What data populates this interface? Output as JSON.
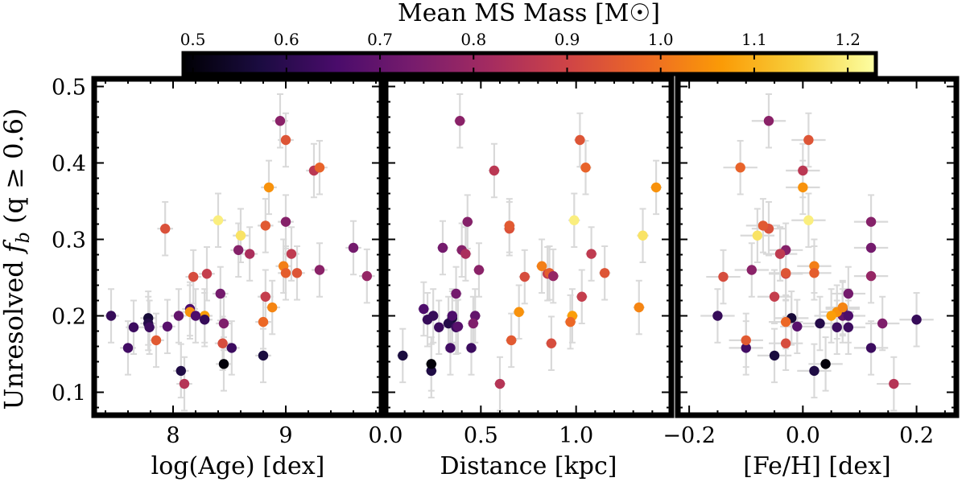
{
  "chart_data": {
    "type": "scatter",
    "shared_ylabel_parts": [
      "Unresolved ",
      "f",
      "b",
      " (q ≥ 0.6)"
    ],
    "ylim": [
      0.07,
      0.51
    ],
    "yticks": [
      0.1,
      0.2,
      0.3,
      0.4,
      0.5
    ],
    "ytick_labels": [
      "0.1",
      "0.2",
      "0.3",
      "0.4",
      "0.5"
    ],
    "colorbar": {
      "label": "Mean MS Mass [M☉]",
      "range": [
        0.49,
        1.23
      ],
      "ticks": [
        0.5,
        0.6,
        0.7,
        0.8,
        0.9,
        1.0,
        1.1,
        1.2
      ],
      "tick_labels": [
        "0.5",
        "0.6",
        "0.7",
        "0.8",
        "0.9",
        "1.0",
        "1.1",
        "1.2"
      ],
      "colormap": "inferno",
      "stops": [
        "#000004",
        "#1b0c41",
        "#4a0c6b",
        "#781c6d",
        "#a52c60",
        "#cf4446",
        "#ed6925",
        "#fb9b06",
        "#f7d13d",
        "#fcffa4"
      ]
    },
    "error_bar_color": "#d9d9d9",
    "clusters": [
      {
        "age": 7.45,
        "dist": 0.25,
        "feh": -0.15,
        "fb": 0.2,
        "mass": 0.62,
        "eage": 0.07,
        "ed": 0.03,
        "ef": 0.03,
        "efb": 0.035
      },
      {
        "age": 7.65,
        "dist": 0.28,
        "feh": 0.08,
        "fb": 0.185,
        "mass": 0.63,
        "eage": 0.07,
        "ed": 0.03,
        "ef": 0.03,
        "efb": 0.035
      },
      {
        "age": 7.6,
        "dist": 0.34,
        "feh": -0.1,
        "fb": 0.158,
        "mass": 0.64,
        "eage": 0.07,
        "ed": 0.03,
        "ef": 0.03,
        "efb": 0.035
      },
      {
        "age": 7.78,
        "dist": 0.35,
        "feh": -0.02,
        "fb": 0.197,
        "mass": 0.56,
        "eage": 0.07,
        "ed": 0.03,
        "ef": 0.03,
        "efb": 0.035
      },
      {
        "age": 7.78,
        "dist": 0.33,
        "feh": 0.03,
        "fb": 0.19,
        "mass": 0.59,
        "eage": 0.07,
        "ed": 0.03,
        "ef": 0.03,
        "efb": 0.035
      },
      {
        "age": 7.79,
        "dist": 0.37,
        "feh": 0.06,
        "fb": 0.185,
        "mass": 0.63,
        "eage": 0.07,
        "ed": 0.03,
        "ef": 0.03,
        "efb": 0.035
      },
      {
        "age": 7.85,
        "dist": 0.66,
        "feh": -0.1,
        "fb": 0.168,
        "mass": 0.95,
        "eage": 0.07,
        "ed": 0.03,
        "ef": 0.03,
        "efb": 0.035
      },
      {
        "age": 7.93,
        "dist": 0.65,
        "feh": -0.06,
        "fb": 0.314,
        "mass": 0.93,
        "eage": 0.07,
        "ed": 0.03,
        "ef": 0.03,
        "efb": 0.035
      },
      {
        "age": 8.05,
        "dist": 0.47,
        "feh": 0.07,
        "fb": 0.2,
        "mass": 0.7,
        "eage": 0.07,
        "ed": 0.03,
        "ef": 0.03,
        "efb": 0.035
      },
      {
        "age": 8.07,
        "dist": 0.24,
        "feh": 0.02,
        "fb": 0.128,
        "mass": 0.58,
        "eage": 0.07,
        "ed": 0.03,
        "ef": 0.03,
        "efb": 0.035
      },
      {
        "age": 8.1,
        "dist": 0.6,
        "feh": 0.16,
        "fb": 0.111,
        "mass": 0.85,
        "eage": 0.07,
        "ed": 0.03,
        "ef": 0.03,
        "efb": 0.035
      },
      {
        "age": 8.15,
        "dist": 0.2,
        "feh": 0.07,
        "fb": 0.209,
        "mass": 0.66,
        "eage": 0.07,
        "ed": 0.03,
        "ef": 0.03,
        "efb": 0.035
      },
      {
        "age": 8.15,
        "dist": 0.7,
        "feh": 0.06,
        "fb": 0.205,
        "mass": 1.05,
        "eage": 0.07,
        "ed": 0.03,
        "ef": 0.03,
        "efb": 0.035
      },
      {
        "age": 8.18,
        "dist": 0.73,
        "feh": -0.14,
        "fb": 0.251,
        "mass": 0.92,
        "eage": 0.07,
        "ed": 0.03,
        "ef": 0.03,
        "efb": 0.035
      },
      {
        "age": 8.28,
        "dist": 0.98,
        "feh": 0.05,
        "fb": 0.2,
        "mass": 1.07,
        "eage": 0.07,
        "ed": 0.03,
        "ef": 0.03,
        "efb": 0.035
      },
      {
        "age": 8.3,
        "dist": 0.85,
        "feh": -0.03,
        "fb": 0.255,
        "mass": 0.88,
        "eage": 0.07,
        "ed": 0.03,
        "ef": 0.03,
        "efb": 0.035
      },
      {
        "age": 8.4,
        "dist": 0.99,
        "feh": 0.01,
        "fb": 0.325,
        "mass": 1.2,
        "eage": 0.07,
        "ed": 0.03,
        "ef": 0.03,
        "efb": 0.035
      },
      {
        "age": 8.42,
        "dist": 0.37,
        "feh": 0.08,
        "fb": 0.229,
        "mass": 0.73,
        "eage": 0.07,
        "ed": 0.03,
        "ef": 0.03,
        "efb": 0.035
      },
      {
        "age": 8.44,
        "dist": 0.87,
        "feh": -0.03,
        "fb": 0.164,
        "mass": 0.92,
        "eage": 0.07,
        "ed": 0.03,
        "ef": 0.03,
        "efb": 0.035
      },
      {
        "age": 8.45,
        "dist": 0.46,
        "feh": 0.14,
        "fb": 0.19,
        "mass": 0.75,
        "eage": 0.07,
        "ed": 0.03,
        "ef": 0.03,
        "efb": 0.035
      },
      {
        "age": 8.45,
        "dist": 0.24,
        "feh": 0.04,
        "fb": 0.137,
        "mass": 0.5,
        "eage": 0.07,
        "ed": 0.03,
        "ef": 0.03,
        "efb": 0.035
      },
      {
        "age": 8.52,
        "dist": 0.45,
        "feh": 0.12,
        "fb": 0.158,
        "mass": 0.63,
        "eage": 0.07,
        "ed": 0.03,
        "ef": 0.03,
        "efb": 0.035
      },
      {
        "age": 8.6,
        "dist": 1.35,
        "feh": -0.08,
        "fb": 0.305,
        "mass": 1.18,
        "eage": 0.07,
        "ed": 0.03,
        "ef": 0.03,
        "efb": 0.035
      },
      {
        "age": 8.58,
        "dist": 0.4,
        "feh": -0.03,
        "fb": 0.286,
        "mass": 0.76,
        "eage": 0.07,
        "ed": 0.03,
        "ef": 0.03,
        "efb": 0.035
      },
      {
        "age": 8.68,
        "dist": 0.42,
        "feh": -0.04,
        "fb": 0.281,
        "mass": 0.83,
        "eage": 0.07,
        "ed": 0.03,
        "ef": 0.03,
        "efb": 0.035
      },
      {
        "age": 8.8,
        "dist": 0.09,
        "feh": -0.05,
        "fb": 0.148,
        "mass": 0.57,
        "eage": 0.07,
        "ed": 0.03,
        "ef": 0.03,
        "efb": 0.035
      },
      {
        "age": 8.8,
        "dist": 0.97,
        "feh": -0.03,
        "fb": 0.192,
        "mass": 0.98,
        "eage": 0.07,
        "ed": 0.03,
        "ef": 0.03,
        "efb": 0.035
      },
      {
        "age": 8.82,
        "dist": 1.03,
        "feh": -0.05,
        "fb": 0.225,
        "mass": 0.88,
        "eage": 0.07,
        "ed": 0.03,
        "ef": 0.03,
        "efb": 0.035
      },
      {
        "age": 8.82,
        "dist": 0.65,
        "feh": -0.07,
        "fb": 0.318,
        "mass": 0.95,
        "eage": 0.07,
        "ed": 0.03,
        "ef": 0.03,
        "efb": 0.035
      },
      {
        "age": 8.85,
        "dist": 1.42,
        "feh": 0.0,
        "fb": 0.368,
        "mass": 1.05,
        "eage": 0.07,
        "ed": 0.03,
        "ef": 0.03,
        "efb": 0.035
      },
      {
        "age": 8.88,
        "dist": 1.33,
        "feh": 0.07,
        "fb": 0.211,
        "mass": 1.03,
        "eage": 0.07,
        "ed": 0.03,
        "ef": 0.03,
        "efb": 0.035
      },
      {
        "age": 8.95,
        "dist": 0.39,
        "feh": -0.06,
        "fb": 0.455,
        "mass": 0.77,
        "eage": 0.07,
        "ed": 0.03,
        "ef": 0.03,
        "efb": 0.035
      },
      {
        "age": 8.98,
        "dist": 0.82,
        "feh": 0.02,
        "fb": 0.265,
        "mass": 1.02,
        "eage": 0.07,
        "ed": 0.03,
        "ef": 0.03,
        "efb": 0.035
      },
      {
        "age": 9.0,
        "dist": 1.02,
        "feh": 0.01,
        "fb": 0.43,
        "mass": 0.94,
        "eage": 0.07,
        "ed": 0.03,
        "ef": 0.03,
        "efb": 0.035
      },
      {
        "age": 9.0,
        "dist": 0.43,
        "feh": 0.12,
        "fb": 0.323,
        "mass": 0.76,
        "eage": 0.07,
        "ed": 0.03,
        "ef": 0.03,
        "efb": 0.035
      },
      {
        "age": 9.0,
        "dist": 0.86,
        "feh": 0.02,
        "fb": 0.256,
        "mass": 0.96,
        "eage": 0.07,
        "ed": 0.03,
        "ef": 0.03,
        "efb": 0.035
      },
      {
        "age": 9.05,
        "dist": 1.08,
        "feh": -0.04,
        "fb": 0.281,
        "mass": 0.87,
        "eage": 0.07,
        "ed": 0.03,
        "ef": 0.03,
        "efb": 0.035
      },
      {
        "age": 9.25,
        "dist": 0.57,
        "feh": 0.0,
        "fb": 0.39,
        "mass": 0.86,
        "eage": 0.07,
        "ed": 0.03,
        "ef": 0.03,
        "efb": 0.035
      },
      {
        "age": 9.3,
        "dist": 1.05,
        "feh": -0.11,
        "fb": 0.394,
        "mass": 0.97,
        "eage": 0.07,
        "ed": 0.03,
        "ef": 0.03,
        "efb": 0.035
      },
      {
        "age": 9.3,
        "dist": 0.49,
        "feh": -0.09,
        "fb": 0.26,
        "mass": 0.77,
        "eage": 0.07,
        "ed": 0.03,
        "ef": 0.03,
        "efb": 0.035
      },
      {
        "age": 9.6,
        "dist": 0.3,
        "feh": 0.12,
        "fb": 0.289,
        "mass": 0.73,
        "eage": 0.07,
        "ed": 0.03,
        "ef": 0.03,
        "efb": 0.035
      },
      {
        "age": 9.72,
        "dist": 0.88,
        "feh": 0.12,
        "fb": 0.252,
        "mass": 0.79,
        "eage": 0.07,
        "ed": 0.03,
        "ef": 0.03,
        "efb": 0.035
      },
      {
        "age": 8.2,
        "dist": 0.35,
        "feh": 0.08,
        "fb": 0.2,
        "mass": 0.66,
        "eage": 0.07,
        "ed": 0.03,
        "ef": 0.03,
        "efb": 0.035
      },
      {
        "age": 8.28,
        "dist": 0.22,
        "feh": 0.2,
        "fb": 0.195,
        "mass": 0.62,
        "eage": 0.07,
        "ed": 0.03,
        "ef": 0.03,
        "efb": 0.035
      },
      {
        "age": 7.95,
        "dist": 0.38,
        "feh": -0.01,
        "fb": 0.186,
        "mass": 0.68,
        "eage": 0.07,
        "ed": 0.03,
        "ef": 0.03,
        "efb": 0.035
      },
      {
        "age": 9.1,
        "dist": 1.15,
        "feh": -0.03,
        "fb": 0.256,
        "mass": 0.94,
        "eage": 0.07,
        "ed": 0.03,
        "ef": 0.03,
        "efb": 0.035
      }
    ],
    "panels": [
      {
        "key": "age",
        "err_key": "eage",
        "xlabel": "log(Age) [dex]",
        "xlim": [
          7.3,
          9.85
        ],
        "xticks": [
          8,
          9
        ],
        "xtick_labels": [
          "8",
          "9"
        ],
        "minor_step": 0.2
      },
      {
        "key": "dist",
        "err_key": "ed",
        "xlabel": "Distance [kpc]",
        "xlim": [
          0.0,
          1.5
        ],
        "xticks": [
          0.0,
          0.5,
          1.0
        ],
        "xtick_labels": [
          "0.0",
          "0.5",
          "1.0"
        ],
        "minor_step": 0.1
      },
      {
        "key": "feh",
        "err_key": "ef",
        "xlabel": "[Fe/H] [dex]",
        "xlim": [
          -0.22,
          0.27
        ],
        "xticks": [
          -0.2,
          0.0,
          0.2
        ],
        "xtick_labels": [
          "−0.2",
          "0.0",
          "0.2"
        ],
        "minor_step": 0.05
      }
    ]
  }
}
